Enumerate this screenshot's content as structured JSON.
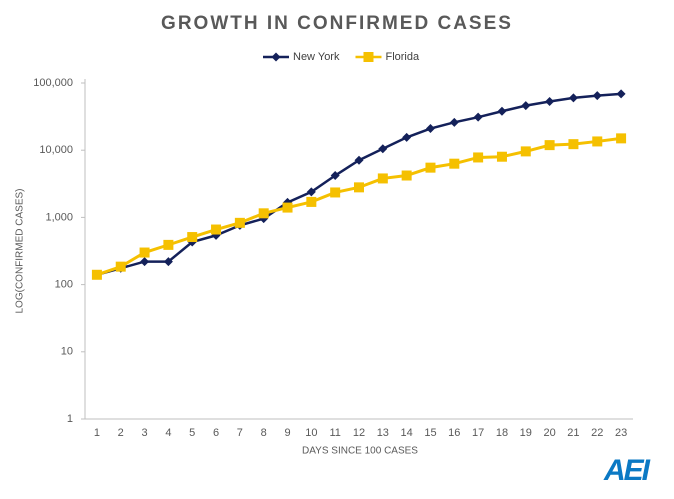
{
  "chart_data": {
    "type": "line",
    "title": "GROWTH IN CONFIRMED CASES",
    "x_label": "DAYS SINCE 100 CASES",
    "y_label": "LOG(CONFIRMED CASES)",
    "logo": "AEI",
    "log_scale": true,
    "grid": false,
    "legend": "top",
    "categories": [
      "1",
      "2",
      "3",
      "4",
      "5",
      "6",
      "7",
      "8",
      "9",
      "10",
      "11",
      "12",
      "13",
      "14",
      "15",
      "16",
      "17",
      "18",
      "19",
      "20",
      "21",
      "22",
      "23"
    ],
    "ylim": [
      1,
      100000
    ],
    "yticks": [
      {
        "value": 100000,
        "label": "100,000"
      },
      {
        "value": 10000,
        "label": "10,000"
      },
      {
        "value": 1000,
        "label": "1,000"
      },
      100,
      10,
      1
    ],
    "series": [
      {
        "name": "New York",
        "color": "#14215a",
        "marker": "diamond",
        "values": [
          140,
          175,
          220,
          220,
          430,
          540,
          760,
          960,
          1670,
          2400,
          4200,
          7100,
          10500,
          15500,
          21000,
          26000,
          31000,
          38000,
          46000,
          53000,
          60000,
          65000,
          69000
        ]
      },
      {
        "name": "Florida",
        "color": "#f5c000",
        "marker": "square",
        "values": [
          140,
          185,
          300,
          390,
          510,
          660,
          830,
          1150,
          1400,
          1700,
          2350,
          2800,
          3800,
          4200,
          5500,
          6300,
          7800,
          8000,
          9600,
          11900,
          12300,
          13500,
          15000
        ]
      }
    ]
  }
}
